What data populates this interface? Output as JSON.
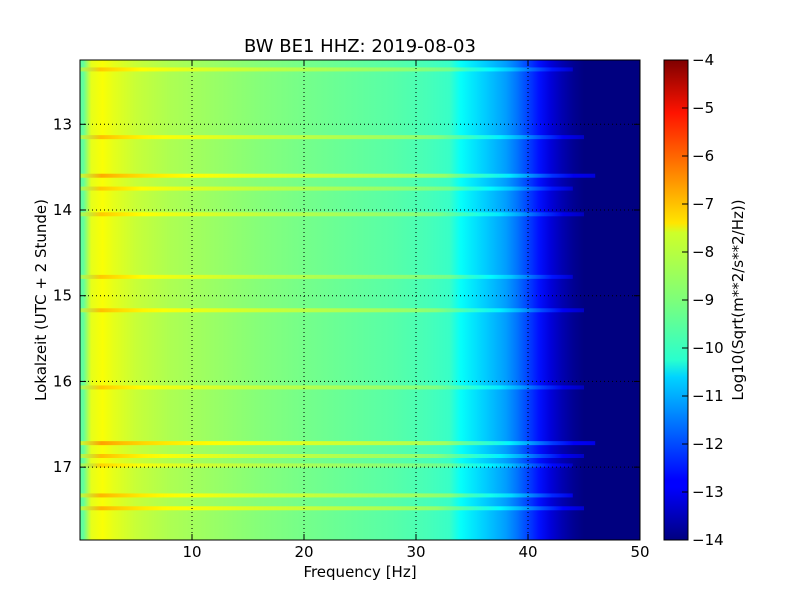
{
  "chart_data": {
    "type": "heatmap",
    "title": "BW BE1 HHZ: 2019-08-03",
    "xlabel": "Frequency [Hz]",
    "ylabel": "Lokalzeit (UTC + 2 Stunde)",
    "xlim": [
      0,
      50
    ],
    "ylim": [
      12.25,
      17.85
    ],
    "y_inverted": true,
    "x_ticks": [
      10,
      20,
      30,
      40,
      50
    ],
    "x_tick_labels": [
      "10",
      "20",
      "30",
      "40",
      "50"
    ],
    "y_ticks": [
      13,
      14,
      15,
      16,
      17
    ],
    "y_tick_labels": [
      "13",
      "14",
      "15",
      "16",
      "17"
    ],
    "grid": true,
    "colormap": "jet",
    "colorbar": {
      "label": "Log10(Sqrt(m**2/s**2/Hz))",
      "range": [
        -14,
        -4
      ],
      "ticks": [
        -4,
        -5,
        -6,
        -7,
        -8,
        -9,
        -10,
        -11,
        -12,
        -13,
        -14
      ],
      "tick_labels": [
        "−4",
        "−5",
        "−6",
        "−7",
        "−8",
        "−9",
        "−10",
        "−11",
        "−12",
        "−13",
        "−14"
      ]
    },
    "spectral_profile": {
      "frequency_hz": [
        0.3,
        1,
        2,
        3,
        5,
        8,
        10,
        13,
        16,
        20,
        24,
        28,
        31,
        33,
        34,
        36,
        38,
        39,
        40,
        41,
        42,
        43,
        44,
        45,
        46,
        50
      ],
      "log_amplitude": [
        -9.3,
        -8.0,
        -7.8,
        -8.0,
        -8.3,
        -8.55,
        -8.65,
        -8.8,
        -8.95,
        -9.1,
        -9.25,
        -9.4,
        -9.55,
        -9.7,
        -10.2,
        -10.7,
        -11.2,
        -11.6,
        -12.1,
        -12.6,
        -13.1,
        -13.5,
        -13.8,
        -14.0,
        -14.0,
        -14.0
      ]
    },
    "disturbance_bands": [
      {
        "time_h": 12.36,
        "log_amplitude_offset": 0.6,
        "max_freq_hz": 44
      },
      {
        "time_h": 13.15,
        "log_amplitude_offset": 0.7,
        "max_freq_hz": 45
      },
      {
        "time_h": 13.6,
        "log_amplitude_offset": 0.9,
        "max_freq_hz": 46
      },
      {
        "time_h": 13.75,
        "log_amplitude_offset": 0.6,
        "max_freq_hz": 44
      },
      {
        "time_h": 14.05,
        "log_amplitude_offset": 0.6,
        "max_freq_hz": 45
      },
      {
        "time_h": 14.78,
        "log_amplitude_offset": 0.6,
        "max_freq_hz": 44
      },
      {
        "time_h": 15.17,
        "log_amplitude_offset": 0.7,
        "max_freq_hz": 45
      },
      {
        "time_h": 16.07,
        "log_amplitude_offset": 0.6,
        "max_freq_hz": 45
      },
      {
        "time_h": 16.72,
        "log_amplitude_offset": 1.0,
        "max_freq_hz": 46
      },
      {
        "time_h": 16.87,
        "log_amplitude_offset": 0.7,
        "max_freq_hz": 45
      },
      {
        "time_h": 16.98,
        "log_amplitude_offset": 0.5,
        "max_freq_hz": 44
      },
      {
        "time_h": 17.33,
        "log_amplitude_offset": 0.8,
        "max_freq_hz": 44
      },
      {
        "time_h": 17.48,
        "log_amplitude_offset": 0.8,
        "max_freq_hz": 45
      }
    ]
  }
}
